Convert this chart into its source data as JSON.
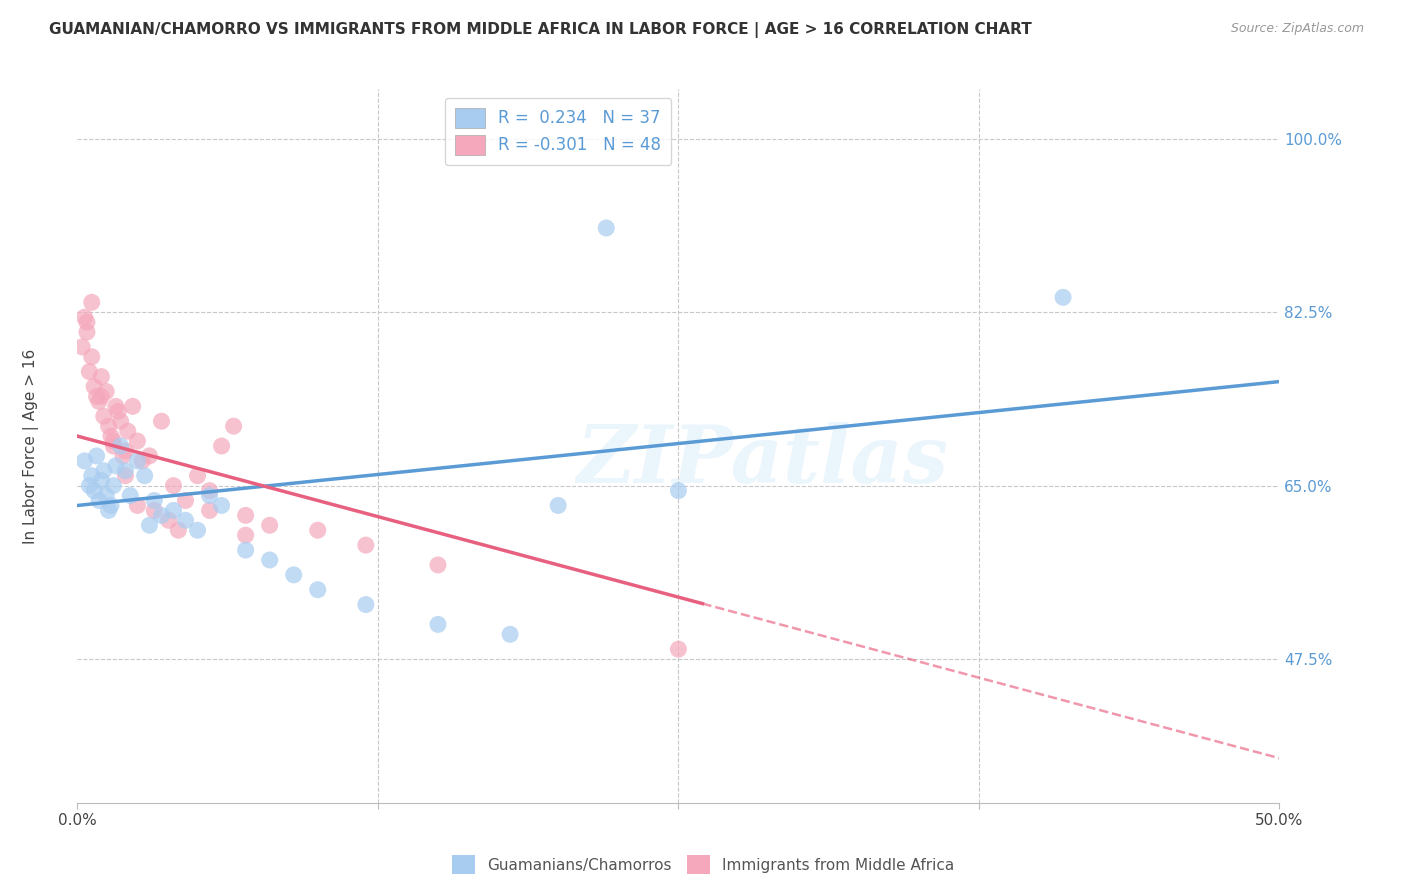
{
  "title": "GUAMANIAN/CHAMORRO VS IMMIGRANTS FROM MIDDLE AFRICA IN LABOR FORCE | AGE > 16 CORRELATION CHART",
  "source": "Source: ZipAtlas.com",
  "ylabel": "In Labor Force | Age > 16",
  "ylabel_ticks": [
    100.0,
    82.5,
    65.0,
    47.5
  ],
  "ylabel_tick_labels": [
    "100.0%",
    "82.5%",
    "65.0%",
    "47.5%"
  ],
  "xmin": 0.0,
  "xmax": 50.0,
  "ymin": 33.0,
  "ymax": 105.0,
  "blue_R": 0.234,
  "blue_N": 37,
  "pink_R": -0.301,
  "pink_N": 48,
  "blue_color": "#A8CCF0",
  "pink_color": "#F5A8BC",
  "blue_line_color": "#5B9BD5",
  "pink_line_color": "#E86080",
  "legend_blue_label": "Guamanians/Chamorros",
  "legend_pink_label": "Immigrants from Middle Africa",
  "blue_line_x0": 0.0,
  "blue_line_y0": 63.0,
  "blue_line_x1": 50.0,
  "blue_line_y1": 75.5,
  "pink_line_x0": 0.0,
  "pink_line_y0": 70.0,
  "pink_line_x1": 50.0,
  "pink_line_y1": 37.5,
  "pink_solid_end_x": 26.0,
  "blue_scatter_x": [
    0.3,
    0.5,
    0.6,
    0.7,
    0.8,
    0.9,
    1.0,
    1.1,
    1.2,
    1.3,
    1.4,
    1.5,
    1.6,
    1.8,
    2.0,
    2.2,
    2.5,
    2.8,
    3.0,
    3.2,
    3.5,
    4.0,
    4.5,
    5.0,
    5.5,
    6.0,
    7.0,
    8.0,
    9.0,
    10.0,
    12.0,
    15.0,
    18.0,
    20.0,
    25.0,
    41.0,
    22.0
  ],
  "blue_scatter_y": [
    67.5,
    65.0,
    66.0,
    64.5,
    68.0,
    63.5,
    65.5,
    66.5,
    64.0,
    62.5,
    63.0,
    65.0,
    67.0,
    69.0,
    66.5,
    64.0,
    67.5,
    66.0,
    61.0,
    63.5,
    62.0,
    62.5,
    61.5,
    60.5,
    64.0,
    63.0,
    58.5,
    57.5,
    56.0,
    54.5,
    53.0,
    51.0,
    50.0,
    63.0,
    64.5,
    84.0,
    91.0
  ],
  "pink_scatter_x": [
    0.2,
    0.3,
    0.4,
    0.5,
    0.6,
    0.7,
    0.8,
    0.9,
    1.0,
    1.1,
    1.2,
    1.3,
    1.4,
    1.5,
    1.6,
    1.7,
    1.8,
    1.9,
    2.0,
    2.1,
    2.3,
    2.5,
    2.7,
    3.0,
    3.5,
    4.0,
    4.5,
    5.0,
    5.5,
    6.0,
    7.0,
    8.0,
    10.0,
    12.0,
    15.0,
    0.4,
    0.6,
    1.0,
    1.5,
    2.0,
    2.5,
    3.2,
    3.8,
    4.2,
    5.5,
    7.0,
    25.0,
    6.5
  ],
  "pink_scatter_y": [
    79.0,
    82.0,
    80.5,
    76.5,
    78.0,
    75.0,
    74.0,
    73.5,
    76.0,
    72.0,
    74.5,
    71.0,
    70.0,
    69.5,
    73.0,
    72.5,
    71.5,
    68.0,
    68.5,
    70.5,
    73.0,
    69.5,
    67.5,
    68.0,
    71.5,
    65.0,
    63.5,
    66.0,
    64.5,
    69.0,
    62.0,
    61.0,
    60.5,
    59.0,
    57.0,
    81.5,
    83.5,
    74.0,
    69.0,
    66.0,
    63.0,
    62.5,
    61.5,
    60.5,
    62.5,
    60.0,
    48.5,
    71.0
  ],
  "watermark": "ZIPatlas",
  "background_color": "#FFFFFF",
  "grid_color": "#C8C8C8"
}
